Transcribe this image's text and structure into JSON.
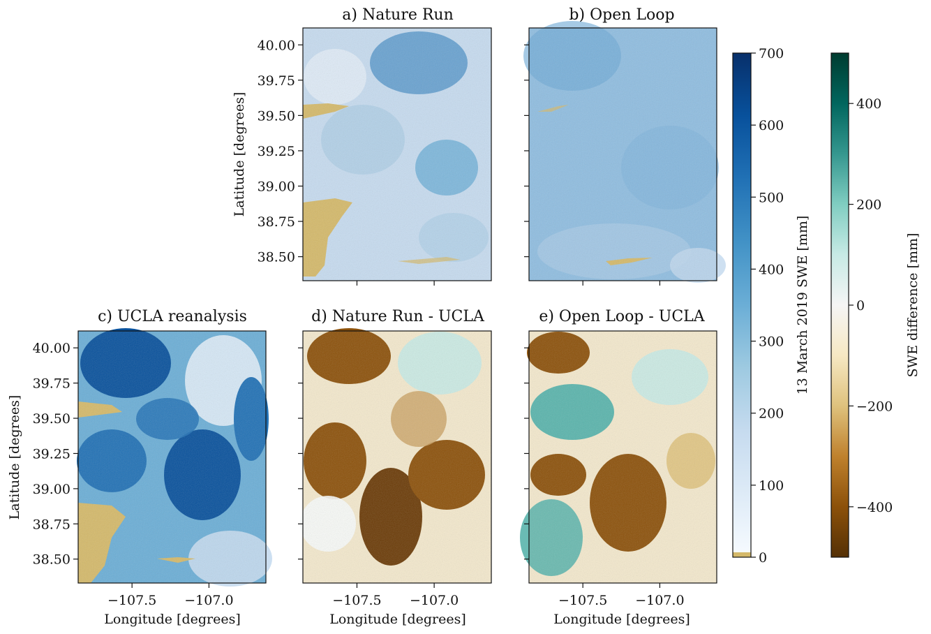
{
  "chart_data": [
    {
      "type": "heatmap",
      "title": "a) Nature Run",
      "xlabel": "",
      "ylabel": "Latitude [degrees]",
      "yticks": [
        "40.00",
        "39.75",
        "39.50",
        "39.25",
        "39.00",
        "38.75",
        "38.50"
      ],
      "xticks": [
        "",
        ""
      ],
      "colormap": "Blues",
      "palette": [
        "#d2e3f3",
        "#c6dbef",
        "#a9cce4",
        "#6baed6",
        "#4a8fc6"
      ]
    },
    {
      "type": "heatmap",
      "title": "b) Open Loop",
      "xlabel": "",
      "ylabel": "",
      "yticks": [
        "",
        "",
        "",
        "",
        "",
        "",
        ""
      ],
      "xticks": [
        "",
        ""
      ],
      "colormap": "Blues",
      "palette": [
        "#a8cbe6",
        "#8fbde0",
        "#7fb3db",
        "#6aa7d4",
        "#c2d8ee"
      ]
    },
    {
      "type": "heatmap",
      "title": "c) UCLA reanalysis",
      "xlabel": "Longitude [degrees]",
      "ylabel": "Latitude [degrees]",
      "yticks": [
        "40.00",
        "39.75",
        "39.50",
        "39.25",
        "39.00",
        "38.75",
        "38.50"
      ],
      "xticks": [
        "−107.5",
        "−107.0"
      ],
      "colormap": "Blues",
      "palette": [
        "#c6dbef",
        "#6baed6",
        "#2171b5",
        "#08519c",
        "#e8f1fa"
      ]
    },
    {
      "type": "heatmap",
      "title": "d) Nature Run - UCLA",
      "xlabel": "Longitude [degrees]",
      "ylabel": "",
      "yticks": [
        "",
        "",
        "",
        "",
        "",
        "",
        ""
      ],
      "xticks": [
        "−107.5",
        "−107.0"
      ],
      "colormap": "BrBG",
      "palette": [
        "#f3e8cc",
        "#c9a062",
        "#8c510a",
        "#6b3b07",
        "#c7eae5"
      ]
    },
    {
      "type": "heatmap",
      "title": "e) Open Loop - UCLA",
      "xlabel": "Longitude [degrees]",
      "ylabel": "",
      "yticks": [
        "",
        "",
        "",
        "",
        "",
        "",
        ""
      ],
      "xticks": [
        "−107.5",
        "−107.0"
      ],
      "colormap": "BrBG",
      "palette": [
        "#f3e8cc",
        "#c7eae5",
        "#5ab4ac",
        "#8c510a",
        "#dfc27d"
      ]
    }
  ],
  "colorbars": [
    {
      "label": "13 March 2019 SWE [mm]",
      "ticks": [
        "700",
        "600",
        "500",
        "400",
        "300",
        "200",
        "100",
        "0"
      ],
      "range": [
        0,
        700
      ],
      "zero_color": "#d4b96a",
      "colors": [
        "#f7fbff",
        "#deebf7",
        "#c6dbef",
        "#9ecae1",
        "#6baed6",
        "#4292c6",
        "#2171b5",
        "#08519c",
        "#08306b"
      ]
    },
    {
      "label": "SWE difference [mm]",
      "ticks": [
        "400",
        "200",
        "0",
        "−200",
        "−400"
      ],
      "range": [
        -500,
        500
      ],
      "colors": [
        "#543005",
        "#8c510a",
        "#bf812d",
        "#dfc27d",
        "#f6e8c3",
        "#f5f5f5",
        "#c7eae5",
        "#80cdc1",
        "#35978f",
        "#01665e",
        "#003c30"
      ]
    }
  ],
  "colors": {
    "bare_ground": "#d4b96a"
  }
}
